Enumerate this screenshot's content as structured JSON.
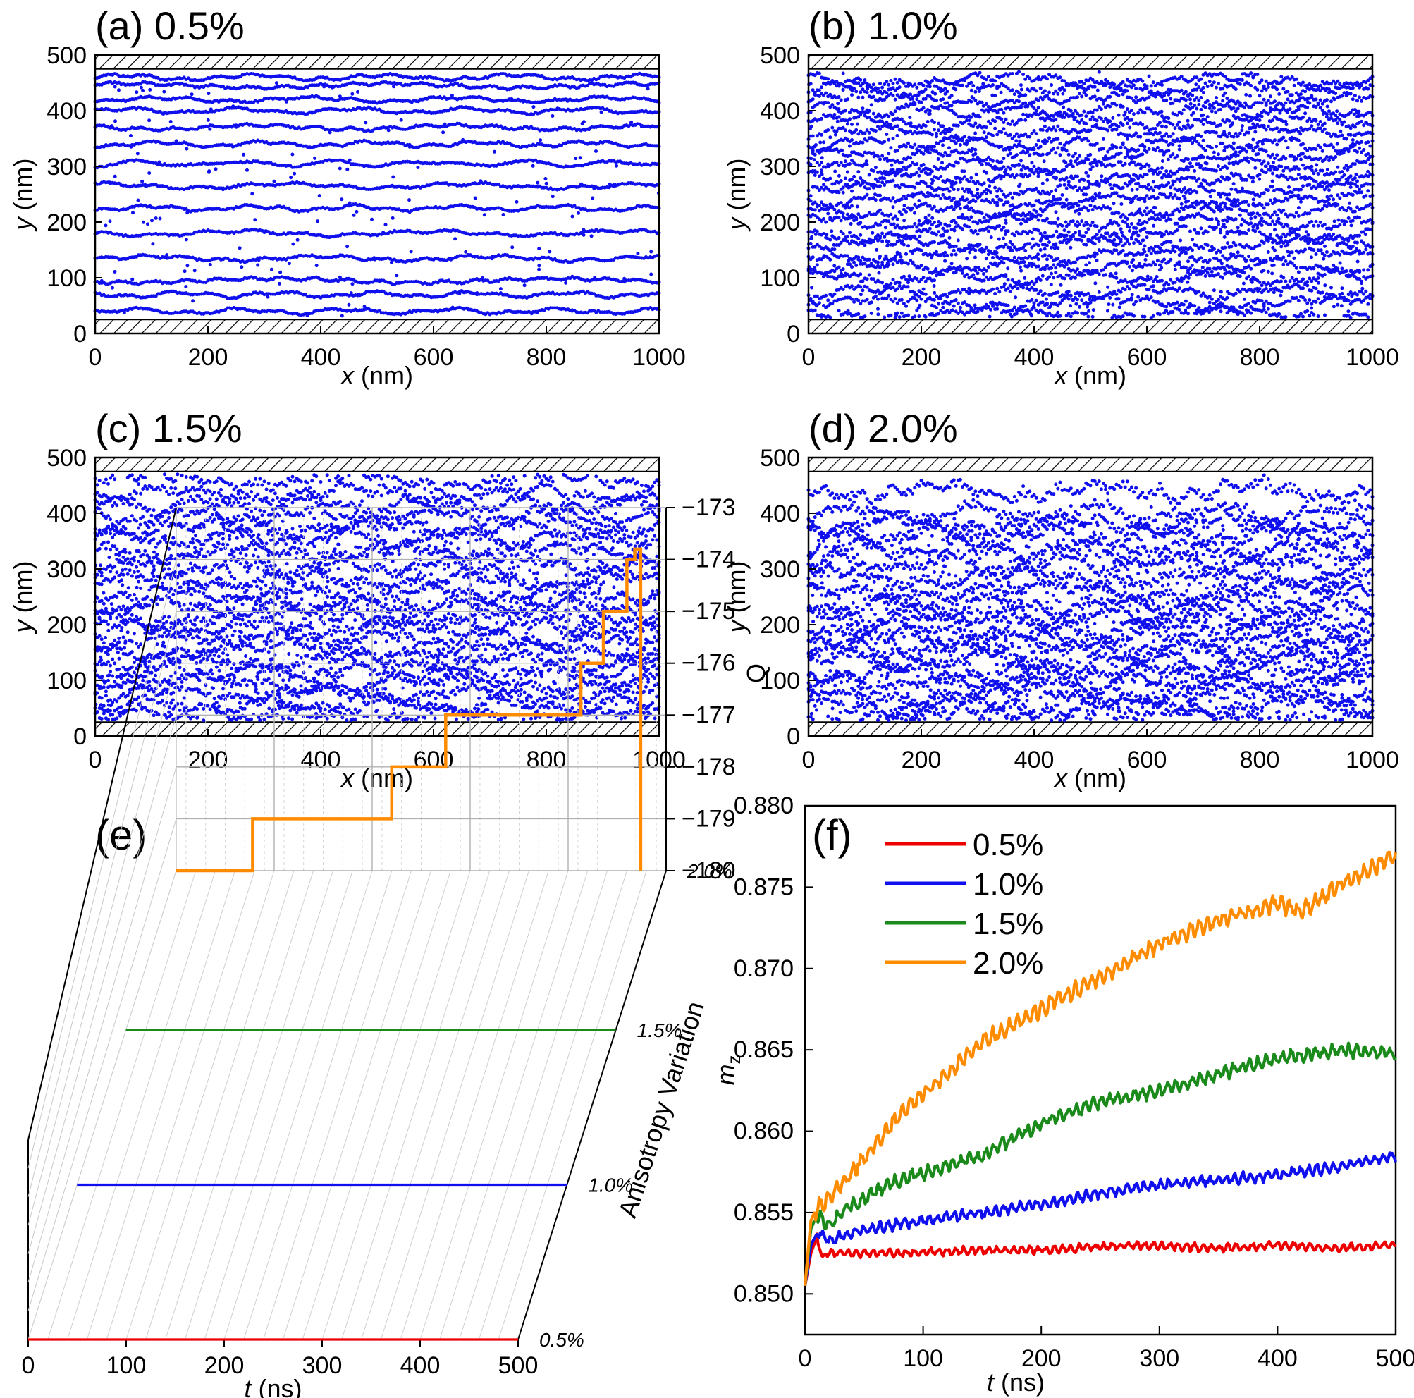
{
  "colors": {
    "traj": "#1010ee",
    "red": "#ee0000",
    "blue": "#1010ee",
    "green": "#1a8a1a",
    "orange": "#ff8c00"
  },
  "chart_data": [
    {
      "id": "a",
      "type": "scatter",
      "title": "(a) 0.5%",
      "xlabel_var": "x",
      "xlabel_unit": " (nm)",
      "ylabel_var": "y",
      "ylabel_unit": " (nm)",
      "xlim": [
        0,
        1000
      ],
      "ylim": [
        0,
        500
      ],
      "xticks": [
        "0",
        "200",
        "400",
        "600",
        "800",
        "1000"
      ],
      "yticks": [
        "0",
        "100",
        "200",
        "300",
        "400",
        "500"
      ],
      "walls": [
        [
          0,
          25
        ],
        [
          475,
          500
        ]
      ],
      "track_y": [
        40,
        70,
        95,
        135,
        180,
        225,
        265,
        305,
        340,
        370,
        400,
        420,
        445,
        460
      ],
      "amplitude": 6,
      "chaos": 0.3
    },
    {
      "id": "b",
      "type": "scatter",
      "title": "(b) 1.0%",
      "xlabel_var": "x",
      "xlabel_unit": " (nm)",
      "ylabel_var": "y",
      "ylabel_unit": " (nm)",
      "xlim": [
        0,
        1000
      ],
      "ylim": [
        0,
        500
      ],
      "xticks": [
        "0",
        "200",
        "400",
        "600",
        "800",
        "1000"
      ],
      "yticks": [
        "0",
        "100",
        "200",
        "300",
        "400",
        "500"
      ],
      "walls": [
        [
          0,
          25
        ],
        [
          475,
          500
        ]
      ],
      "track_y": [
        35,
        55,
        75,
        100,
        120,
        140,
        160,
        180,
        200,
        220,
        240,
        260,
        280,
        300,
        320,
        340,
        360,
        380,
        400,
        420,
        440,
        455
      ],
      "amplitude": 12,
      "chaos": 0.9
    },
    {
      "id": "c",
      "type": "scatter",
      "title": "(c) 1.5%",
      "xlabel_var": "x",
      "xlabel_unit": " (nm)",
      "ylabel_var": "y",
      "ylabel_unit": " (nm)",
      "xlim": [
        0,
        1000
      ],
      "ylim": [
        0,
        500
      ],
      "xticks": [
        "0",
        "200",
        "400",
        "600",
        "800",
        "1000"
      ],
      "yticks": [
        "0",
        "100",
        "200",
        "300",
        "400",
        "500"
      ],
      "walls": [
        [
          0,
          25
        ],
        [
          475,
          500
        ]
      ],
      "track_y": [
        35,
        55,
        75,
        95,
        115,
        135,
        155,
        175,
        195,
        215,
        235,
        255,
        280,
        305,
        330,
        355,
        375,
        395,
        415,
        435,
        460
      ],
      "amplitude": 16,
      "chaos": 1.3
    },
    {
      "id": "d",
      "type": "scatter",
      "title": "(d) 2.0%",
      "xlabel_var": "x",
      "xlabel_unit": " (nm)",
      "ylabel_var": "y",
      "ylabel_unit": " (nm)",
      "xlim": [
        0,
        1000
      ],
      "ylim": [
        0,
        500
      ],
      "xticks": [
        "0",
        "200",
        "400",
        "600",
        "800",
        "1000"
      ],
      "yticks": [
        "0",
        "100",
        "200",
        "300",
        "400",
        "500"
      ],
      "walls": [
        [
          0,
          25
        ],
        [
          475,
          500
        ]
      ],
      "track_y": [
        35,
        55,
        75,
        95,
        115,
        135,
        155,
        175,
        195,
        215,
        235,
        260,
        285,
        310,
        335,
        360,
        380,
        400,
        440
      ],
      "amplitude": 18,
      "chaos": 1.5
    },
    {
      "id": "e",
      "type": "line",
      "title": "(e)",
      "xlabel_var": "t",
      "xlabel_unit": " (ns)",
      "zlabel": "Q",
      "ylabel": "Anisotropy Variation",
      "xlim": [
        0,
        500
      ],
      "zlim": [
        -180,
        -173
      ],
      "xticks": [
        "0",
        "100",
        "200",
        "300",
        "400",
        "500"
      ],
      "zticks": [
        "-173",
        "-174",
        "-175",
        "-176",
        "-177",
        "-178",
        "-179",
        "-180"
      ],
      "categories": [
        "0.5%",
        "1.0%",
        "1.5%",
        "2.0%"
      ],
      "series": [
        {
          "name": "0.5%",
          "color": "#ee0000",
          "steps": [
            [
              0,
              -180
            ],
            [
              500,
              -180
            ]
          ]
        },
        {
          "name": "1.0%",
          "color": "#1010ee",
          "steps": [
            [
              0,
              -180
            ],
            [
              500,
              -180
            ]
          ]
        },
        {
          "name": "1.5%",
          "color": "#1a8a1a",
          "steps": [
            [
              0,
              -180
            ],
            [
              500,
              -180
            ]
          ]
        },
        {
          "name": "2.0%",
          "color": "#ff8c00",
          "steps": [
            [
              0,
              -180
            ],
            [
              78,
              -180
            ],
            [
              78,
              -179
            ],
            [
              220,
              -179
            ],
            [
              220,
              -178
            ],
            [
              275,
              -178
            ],
            [
              275,
              -177
            ],
            [
              413,
              -177
            ],
            [
              413,
              -176
            ],
            [
              436,
              -176
            ],
            [
              436,
              -175
            ],
            [
              460,
              -175
            ],
            [
              460,
              -174
            ],
            [
              468,
              -174
            ],
            [
              468,
              -173.8
            ],
            [
              474,
              -173.8
            ],
            [
              474,
              -180
            ]
          ]
        }
      ]
    },
    {
      "id": "f",
      "type": "line",
      "title": "(f)",
      "xlabel_var": "t",
      "xlabel_unit": " (ns)",
      "ylabel_var": "m",
      "ylabel_sub": "z",
      "xlim": [
        0,
        500
      ],
      "ylim": [
        0.8475,
        0.88
      ],
      "xticks": [
        "0",
        "100",
        "200",
        "300",
        "400",
        "500"
      ],
      "yticks": [
        "0.850",
        "0.855",
        "0.860",
        "0.865",
        "0.870",
        "0.875",
        "0.880"
      ],
      "legend": "top-left",
      "series": [
        {
          "name": "0.5%",
          "color": "#ee0000",
          "x": [
            0,
            5,
            10,
            15,
            20,
            40,
            80,
            150,
            200,
            280,
            350,
            400,
            450,
            500
          ],
          "y": [
            0.8505,
            0.8525,
            0.8535,
            0.8522,
            0.8525,
            0.8525,
            0.8525,
            0.8527,
            0.8527,
            0.853,
            0.8528,
            0.853,
            0.8528,
            0.853
          ]
        },
        {
          "name": "1.0%",
          "color": "#1010ee",
          "x": [
            0,
            5,
            10,
            20,
            40,
            80,
            150,
            200,
            250,
            300,
            350,
            400,
            450,
            500
          ],
          "y": [
            0.8505,
            0.853,
            0.8537,
            0.8533,
            0.8538,
            0.8543,
            0.855,
            0.8555,
            0.8562,
            0.8567,
            0.857,
            0.8573,
            0.8578,
            0.8585
          ]
        },
        {
          "name": "1.5%",
          "color": "#1a8a1a",
          "x": [
            0,
            5,
            10,
            20,
            40,
            80,
            150,
            200,
            250,
            300,
            350,
            400,
            450,
            500
          ],
          "y": [
            0.8505,
            0.854,
            0.8548,
            0.8542,
            0.8555,
            0.857,
            0.8585,
            0.8605,
            0.8618,
            0.8625,
            0.8635,
            0.8645,
            0.865,
            0.8648
          ]
        },
        {
          "name": "2.0%",
          "color": "#ff8c00",
          "x": [
            0,
            5,
            10,
            20,
            40,
            80,
            150,
            200,
            250,
            300,
            350,
            400,
            420,
            450,
            500
          ],
          "y": [
            0.8505,
            0.8545,
            0.8553,
            0.8558,
            0.8575,
            0.861,
            0.8655,
            0.8675,
            0.8695,
            0.8715,
            0.873,
            0.874,
            0.8735,
            0.875,
            0.877
          ]
        }
      ]
    }
  ]
}
